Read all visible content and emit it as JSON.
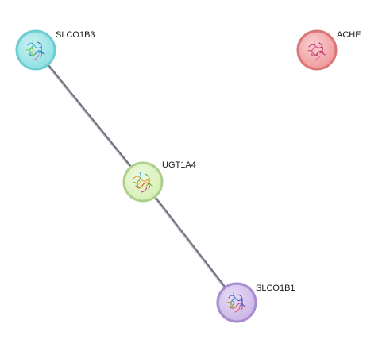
{
  "network": {
    "nodes": [
      {
        "id": "slco1b3",
        "label": "SLCO1B3",
        "color": "#8fe0e3",
        "ring": "#6ccdd2"
      },
      {
        "id": "ache",
        "label": "ACHE",
        "color": "#f09a9c",
        "ring": "#d77779"
      },
      {
        "id": "ugt1a4",
        "label": "UGT1A4",
        "color": "#d6f0b6",
        "ring": "#aecf8d"
      },
      {
        "id": "slco1b1",
        "label": "SLCO1B1",
        "color": "#cbb6e8",
        "ring": "#a98bcf"
      }
    ],
    "edges": [
      {
        "source": "SLCO1B3",
        "target": "UGT1A4"
      },
      {
        "source": "UGT1A4",
        "target": "SLCO1B1"
      }
    ],
    "edge_color": "#8f929c"
  }
}
